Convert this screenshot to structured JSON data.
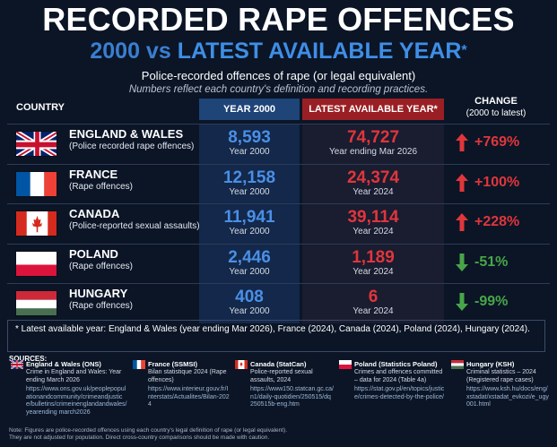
{
  "header": {
    "title": "RECORDED RAPE OFFENCES",
    "subtitle_a": "2000 vs",
    "subtitle_b": "LATEST AVAILABLE YEAR",
    "subtitle_star": "*",
    "desc": "Police-recorded offences of rape (or legal equivalent)",
    "note": "Numbers reflect each country's definition and recording practices."
  },
  "columns": {
    "country": "COUNTRY",
    "year2000": "YEAR 2000",
    "latest": "LATEST AVAILABLE YEAR*",
    "change": "CHANGE",
    "change_sub": "(2000 to latest)"
  },
  "colors": {
    "up": "#e0363b",
    "down": "#48a648",
    "blue": "#4a8fe6"
  },
  "chart_data": {
    "type": "table",
    "title": "RECORDED RAPE OFFENCES",
    "rows": [
      {
        "country": "ENGLAND & WALES",
        "flag": "uk-flag-icon",
        "desc": "(Police recorded rape offences)",
        "v2000": "8,593",
        "y2000": "Year 2000",
        "latest": "74,727",
        "ylatest": "Year ending Mar 2026",
        "change": "+769%",
        "dir": "up"
      },
      {
        "country": "FRANCE",
        "flag": "france-flag-icon",
        "desc": "(Rape offences)",
        "v2000": "12,158",
        "y2000": "Year 2000",
        "latest": "24,374",
        "ylatest": "Year 2024",
        "change": "+100%",
        "dir": "up"
      },
      {
        "country": "CANADA",
        "flag": "canada-flag-icon",
        "desc": "(Police-reported sexual assaults)",
        "v2000": "11,941",
        "y2000": "Year 2000",
        "latest": "39,114",
        "ylatest": "Year 2024",
        "change": "+228%",
        "dir": "up"
      },
      {
        "country": "POLAND",
        "flag": "poland-flag-icon",
        "desc": "(Rape offences)",
        "v2000": "2,446",
        "y2000": "Year 2000",
        "latest": "1,189",
        "ylatest": "Year 2024",
        "change": "-51%",
        "dir": "down"
      },
      {
        "country": "HUNGARY",
        "flag": "hungary-flag-icon",
        "desc": "(Rape offences)",
        "v2000": "408",
        "y2000": "Year 2000",
        "latest": "6",
        "ylatest": "Year 2024",
        "change": "-99%",
        "dir": "down"
      }
    ]
  },
  "footnote": "* Latest available year: England & Wales (year ending Mar 2026), France (2024), Canada (2024), Poland (2024), Hungary (2024).",
  "sources": {
    "heading": "SOURCES:",
    "items": [
      {
        "name": "England & Wales (ONS)",
        "desc": "Crime in England and Wales: Year ending March 2026",
        "url": "https://www.ons.gov.uk/peoplepopulationandcommunity/crimeandjustice/bulletins/crimeinenglandandwales/yearending march2026"
      },
      {
        "name": "France (SSMSI)",
        "desc": "Bilan statistique 2024 (Rape offences)",
        "url": "https://www.interieur.gouv.fr/Interstats/Actualites/Bilan-2024"
      },
      {
        "name": "Canada (StatCan)",
        "desc": "Police-reported sexual assaults, 2024",
        "url": "https://www150.statcan.gc.ca/n1/daily-quotidien/250515/dq250515b-eng.htm"
      },
      {
        "name": "Poland (Statistics Poland)",
        "desc": "Crimes and offences committed – data for 2024 (Table 4a)",
        "url": "https://stat.gov.pl/en/topics/justice/crimes-detected-by-the-police/"
      },
      {
        "name": "Hungary (KSH)",
        "desc": "Criminal statistics – 2024 (Registered rape cases)",
        "url": "https://www.ksh.hu/docs/eng/xstadat/xstadat_evkozi/e_ugy001.html"
      }
    ],
    "disclaimer1": "Note: Figures are police-recorded offences using each country's legal definition of rape (or legal equivalent).",
    "disclaimer2": "They are not adjusted for population. Direct cross-country comparisons should be made with caution."
  }
}
